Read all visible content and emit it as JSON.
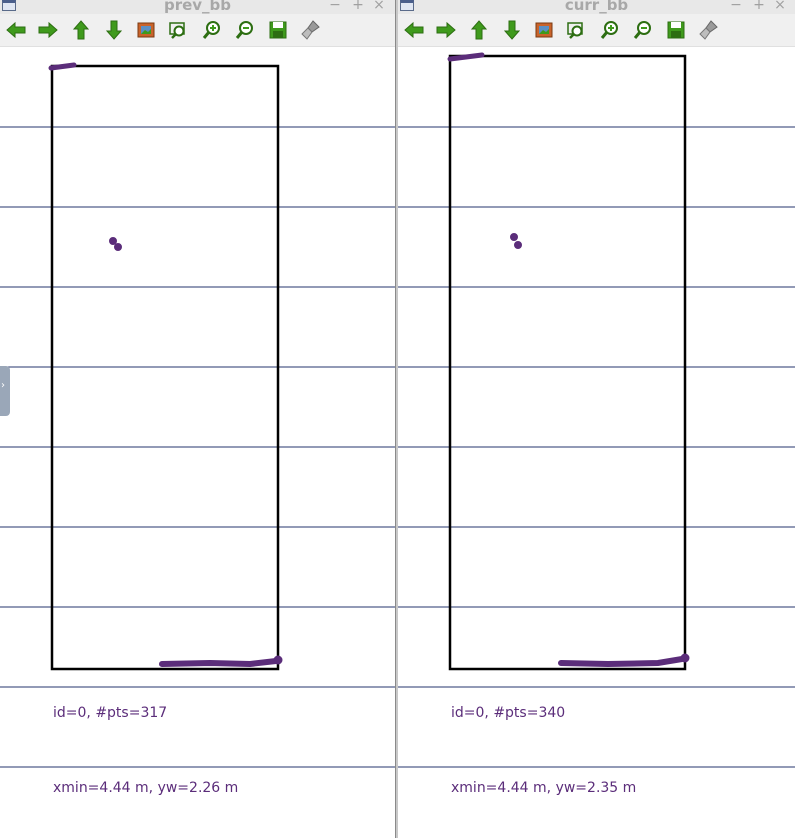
{
  "colors": {
    "grid_line": "#24346e",
    "box_line": "#000000",
    "points": "#5b2d7a",
    "toolbar_bg": "#f0f0f0",
    "title_text": "#a8a8a8",
    "icon_green": "#3f9a1c"
  },
  "window_controls": {
    "minimize": "−",
    "maximize": "+",
    "close": "×"
  },
  "toolbar_icons": [
    "arrow-left-icon",
    "arrow-right-icon",
    "arrow-up-icon",
    "arrow-down-icon",
    "reset-view-icon",
    "zoom-fit-icon",
    "zoom-in-icon",
    "zoom-out-icon",
    "save-icon",
    "clear-brush-icon"
  ],
  "windows": [
    {
      "title": "prev_bb",
      "info_id": "id=0, #pts=317",
      "info_dims": "xmin=4.44 m, yw=2.26 m"
    },
    {
      "title": "curr_bb",
      "info_id": "id=0, #pts=340",
      "info_dims": "xmin=4.44 m, yw=2.35 m"
    }
  ]
}
